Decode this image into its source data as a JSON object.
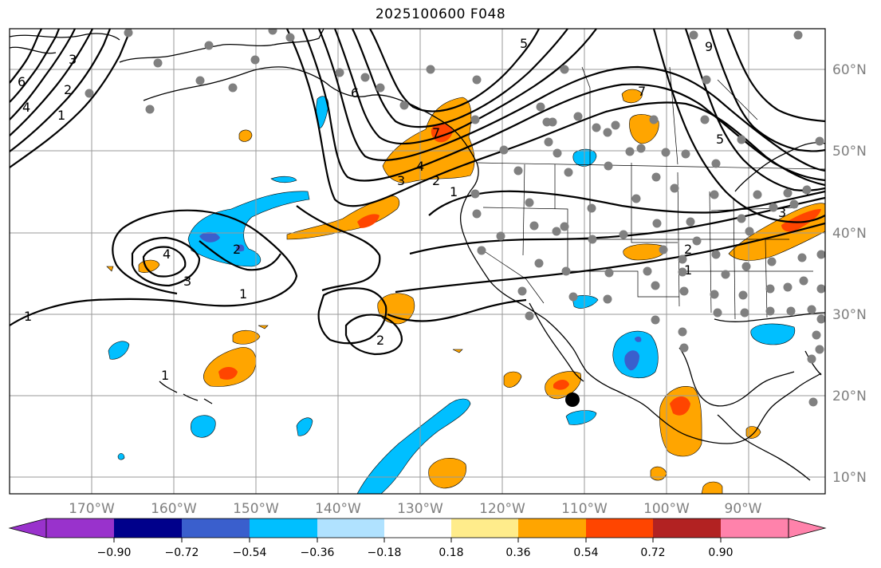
{
  "title": "2025100600 F048",
  "colors": {
    "neg_090": "#9932cc",
    "neg_072": "#00008b",
    "neg_054": "#3a5fcd",
    "neg_036": "#00bfff",
    "neg_018": "#b0e2ff",
    "neutral": "#ffffff",
    "pos_018": "#ffec8b",
    "pos_036": "#ffa500",
    "pos_054": "#ff4500",
    "pos_072": "#b22222",
    "pos_090": "#ff82ab",
    "station_dot": "#808080",
    "marker": "#000000",
    "grid": "#9a9a9a",
    "coast": "#000000"
  },
  "map": {
    "lon_labels": [
      "170°W",
      "160°W",
      "150°W",
      "140°W",
      "130°W",
      "120°W",
      "110°W",
      "100°W",
      "90°W"
    ],
    "lat_labels": [
      "60°N",
      "50°N",
      "40°N",
      "30°N",
      "20°N",
      "10°N"
    ],
    "contour_labels": [
      "1",
      "2",
      "3",
      "4",
      "5",
      "6",
      "7",
      "9"
    ],
    "legend_labels": [
      "−0.90",
      "−0.72",
      "−0.54",
      "−0.36",
      "−0.18",
      "0.18",
      "0.36",
      "0.54",
      "0.72",
      "0.90"
    ]
  }
}
